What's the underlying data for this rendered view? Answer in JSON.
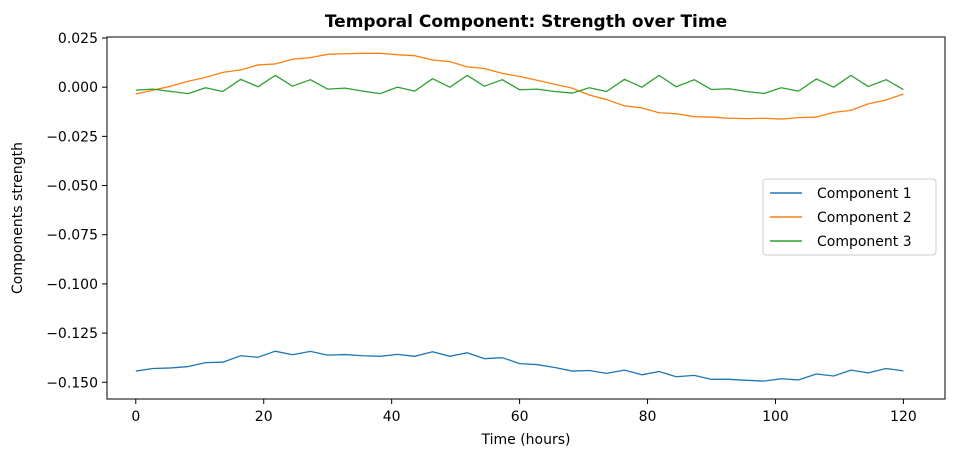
{
  "chart_data": {
    "type": "line",
    "title": "Temporal Component: Strength over Time",
    "xlabel": "Time (hours)",
    "ylabel": "Components strength",
    "xlim": [
      -4.5,
      126.5
    ],
    "ylim": [
      -0.1585,
      0.0255
    ],
    "xticks": [
      0,
      20,
      40,
      60,
      80,
      100,
      120
    ],
    "xtick_labels": [
      "0",
      "20",
      "40",
      "60",
      "80",
      "100",
      "120"
    ],
    "yticks": [
      0.025,
      0.0,
      -0.025,
      -0.05,
      -0.075,
      -0.1,
      -0.125,
      -0.15
    ],
    "ytick_labels": [
      "0.025",
      "0.000",
      "−0.025",
      "−0.050",
      "−0.075",
      "−0.100",
      "−0.125",
      "−0.150"
    ],
    "grid": false,
    "legend_position": "center-right",
    "x": [
      0,
      2.7,
      5.5,
      8.2,
      10.9,
      13.6,
      16.4,
      19.1,
      21.8,
      24.5,
      27.3,
      30,
      32.7,
      35.5,
      38.2,
      40.9,
      43.6,
      46.4,
      49.1,
      51.8,
      54.5,
      57.3,
      60,
      62.7,
      65.5,
      68.2,
      70.9,
      73.6,
      76.4,
      79.1,
      81.8,
      84.5,
      87.3,
      90,
      92.7,
      95.5,
      98.2,
      100.9,
      103.6,
      106.4,
      109.1,
      111.8,
      114.5,
      117.3,
      120
    ],
    "series": [
      {
        "name": "Component 1",
        "color": "#1f77b4",
        "values": [
          -0.1443,
          -0.143,
          -0.1427,
          -0.142,
          -0.14,
          -0.1398,
          -0.1365,
          -0.1373,
          -0.1342,
          -0.136,
          -0.1343,
          -0.1362,
          -0.1359,
          -0.1365,
          -0.1368,
          -0.1358,
          -0.1368,
          -0.1345,
          -0.1368,
          -0.135,
          -0.138,
          -0.1375,
          -0.1405,
          -0.141,
          -0.1425,
          -0.1443,
          -0.144,
          -0.1455,
          -0.1438,
          -0.1462,
          -0.1445,
          -0.1472,
          -0.1465,
          -0.1485,
          -0.1485,
          -0.149,
          -0.1494,
          -0.1482,
          -0.1488,
          -0.1458,
          -0.1468,
          -0.1438,
          -0.1452,
          -0.143,
          -0.1442
        ]
      },
      {
        "name": "Component 2",
        "color": "#ff7f0e",
        "values": [
          -0.0035,
          -0.0015,
          0.0005,
          0.003,
          0.005,
          0.0075,
          0.0088,
          0.0113,
          0.0118,
          0.0142,
          0.015,
          0.0167,
          0.017,
          0.0172,
          0.0172,
          0.0165,
          0.016,
          0.0138,
          0.013,
          0.0103,
          0.0095,
          0.007,
          0.0055,
          0.0035,
          0.0015,
          -0.0005,
          -0.004,
          -0.0063,
          -0.0095,
          -0.0105,
          -0.013,
          -0.0135,
          -0.015,
          -0.0152,
          -0.0158,
          -0.016,
          -0.0158,
          -0.0162,
          -0.0155,
          -0.0152,
          -0.0128,
          -0.0118,
          -0.0085,
          -0.0065,
          -0.0035
        ]
      },
      {
        "name": "Component 3",
        "color": "#2ca02c",
        "values": [
          -0.0015,
          -0.001,
          -0.0022,
          -0.0033,
          -0.0003,
          -0.0022,
          0.004,
          0.0002,
          0.006,
          0.0005,
          0.0038,
          -0.001,
          -0.0005,
          -0.002,
          -0.0033,
          0.0,
          -0.002,
          0.0043,
          0.0,
          0.006,
          0.0005,
          0.0038,
          -0.0013,
          -0.001,
          -0.0022,
          -0.003,
          -0.0003,
          -0.0022,
          0.004,
          0.0,
          0.006,
          0.0002,
          0.0038,
          -0.0012,
          -0.0008,
          -0.0022,
          -0.0032,
          -0.0003,
          -0.002,
          0.0042,
          0.0,
          0.006,
          0.0003,
          0.0038,
          -0.0012
        ]
      }
    ]
  }
}
